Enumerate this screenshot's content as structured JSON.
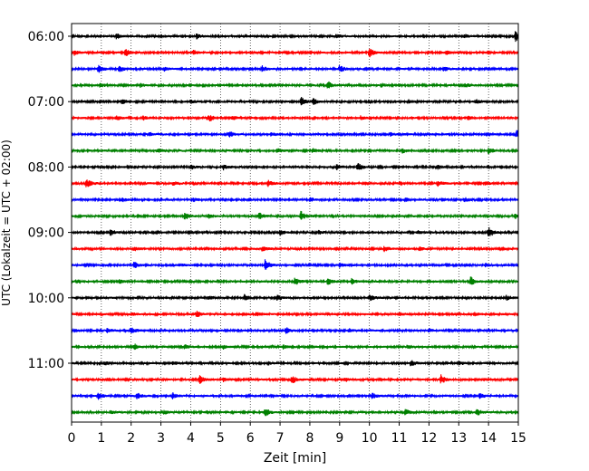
{
  "chart_data": {
    "type": "line",
    "title": "",
    "xlabel": "Zeit  [min]",
    "ylabel": "UTC (Lokalzeit = UTC + 02:00)",
    "xlim": [
      0,
      15
    ],
    "x_ticks": [
      0,
      1,
      2,
      3,
      4,
      5,
      6,
      7,
      8,
      9,
      10,
      11,
      12,
      13,
      14,
      15
    ],
    "x_tick_labels": [
      "0",
      "1",
      "2",
      "3",
      "4",
      "5",
      "6",
      "7",
      "8",
      "9",
      "10",
      "11",
      "12",
      "13",
      "14",
      "15"
    ],
    "y_tick_labels": [
      "06:00",
      "07:00",
      "08:00",
      "09:00",
      "10:00",
      "11:00"
    ],
    "grid": "vertical-dotted",
    "trace_colors": [
      "#000000",
      "#ff0000",
      "#0000ff",
      "#008000"
    ],
    "series": [
      {
        "start": "06:00",
        "events": [
          [
            1.5,
            0.45
          ],
          [
            4.2,
            0.4
          ],
          [
            8.9,
            0.35
          ],
          [
            13.2,
            0.3
          ],
          [
            14.9,
            1.0
          ]
        ]
      },
      {
        "start": "06:15",
        "events": [
          [
            0.1,
            0.5
          ],
          [
            1.8,
            0.6
          ],
          [
            4.1,
            0.35
          ],
          [
            10.0,
            0.75
          ],
          [
            12.6,
            0.3
          ]
        ]
      },
      {
        "start": "06:30",
        "events": [
          [
            0.9,
            0.6
          ],
          [
            1.6,
            0.5
          ],
          [
            3.1,
            0.35
          ],
          [
            6.4,
            0.5
          ],
          [
            9.0,
            0.6
          ],
          [
            12.5,
            0.4
          ]
        ]
      },
      {
        "start": "06:45",
        "events": [
          [
            0.95,
            0.3
          ],
          [
            2.3,
            0.3
          ],
          [
            8.6,
            0.7
          ],
          [
            10.4,
            0.3
          ],
          [
            13.2,
            0.3
          ]
        ]
      },
      {
        "start": "07:00",
        "events": [
          [
            1.7,
            0.4
          ],
          [
            4.0,
            0.3
          ],
          [
            7.7,
            0.8
          ],
          [
            8.1,
            0.55
          ],
          [
            11.3,
            0.3
          ],
          [
            13.6,
            0.3
          ]
        ]
      },
      {
        "start": "07:15",
        "events": [
          [
            1.5,
            0.45
          ],
          [
            2.4,
            0.35
          ],
          [
            4.6,
            0.65
          ],
          [
            5.4,
            0.35
          ],
          [
            9.7,
            0.3
          ],
          [
            13.3,
            0.3
          ]
        ]
      },
      {
        "start": "07:30",
        "events": [
          [
            2.6,
            0.3
          ],
          [
            5.3,
            0.6
          ],
          [
            6.7,
            0.3
          ],
          [
            10.7,
            0.3
          ],
          [
            14.95,
            0.7
          ]
        ]
      },
      {
        "start": "07:45",
        "events": [
          [
            2.9,
            0.3
          ],
          [
            6.9,
            0.3
          ],
          [
            8.1,
            0.3
          ],
          [
            11.1,
            0.35
          ],
          [
            14.0,
            0.55
          ]
        ]
      },
      {
        "start": "08:00",
        "events": [
          [
            4.0,
            0.4
          ],
          [
            5.1,
            0.45
          ],
          [
            8.9,
            0.4
          ],
          [
            9.6,
            0.75
          ],
          [
            12.3,
            0.3
          ]
        ]
      },
      {
        "start": "08:15",
        "events": [
          [
            0.5,
            0.75
          ],
          [
            3.4,
            0.3
          ],
          [
            6.6,
            0.45
          ],
          [
            12.3,
            0.45
          ],
          [
            13.9,
            0.3
          ]
        ]
      },
      {
        "start": "08:30",
        "events": [
          [
            1.7,
            0.3
          ],
          [
            4.1,
            0.3
          ],
          [
            8.0,
            0.3
          ],
          [
            11.2,
            0.3
          ],
          [
            13.2,
            0.4
          ]
        ]
      },
      {
        "start": "08:45",
        "events": [
          [
            3.8,
            0.6
          ],
          [
            4.6,
            0.4
          ],
          [
            6.3,
            0.55
          ],
          [
            7.7,
            0.8
          ],
          [
            14.9,
            0.4
          ]
        ]
      },
      {
        "start": "09:00",
        "events": [
          [
            1.3,
            0.5
          ],
          [
            7.0,
            0.45
          ],
          [
            8.3,
            0.3
          ],
          [
            11.6,
            0.3
          ],
          [
            14.0,
            1.0
          ]
        ]
      },
      {
        "start": "09:15",
        "events": [
          [
            2.1,
            0.3
          ],
          [
            6.4,
            0.45
          ],
          [
            10.5,
            0.4
          ],
          [
            11.7,
            0.3
          ]
        ]
      },
      {
        "start": "09:30",
        "events": [
          [
            2.1,
            0.5
          ],
          [
            3.6,
            0.3
          ],
          [
            6.5,
            1.0
          ],
          [
            9.0,
            0.3
          ],
          [
            13.9,
            0.3
          ]
        ]
      },
      {
        "start": "09:45",
        "events": [
          [
            1.6,
            0.3
          ],
          [
            7.5,
            0.7
          ],
          [
            8.6,
            0.5
          ],
          [
            9.4,
            0.6
          ],
          [
            13.4,
            0.75
          ]
        ]
      },
      {
        "start": "10:00",
        "events": [
          [
            4.6,
            0.3
          ],
          [
            5.8,
            0.5
          ],
          [
            6.9,
            0.5
          ],
          [
            10.0,
            0.5
          ],
          [
            14.6,
            0.4
          ]
        ]
      },
      {
        "start": "10:15",
        "events": [
          [
            2.0,
            0.3
          ],
          [
            4.2,
            0.5
          ],
          [
            6.2,
            0.3
          ],
          [
            11.0,
            0.3
          ],
          [
            13.5,
            0.3
          ]
        ]
      },
      {
        "start": "10:30",
        "events": [
          [
            1.2,
            0.35
          ],
          [
            2.0,
            0.55
          ],
          [
            7.2,
            0.7
          ],
          [
            9.3,
            0.3
          ],
          [
            12.0,
            0.3
          ]
        ]
      },
      {
        "start": "10:45",
        "events": [
          [
            2.1,
            0.5
          ],
          [
            3.8,
            0.3
          ],
          [
            5.1,
            0.3
          ],
          [
            7.1,
            0.3
          ],
          [
            11.3,
            0.3
          ]
        ]
      },
      {
        "start": "11:00",
        "events": [
          [
            1.1,
            0.3
          ],
          [
            3.4,
            0.3
          ],
          [
            6.6,
            0.3
          ],
          [
            11.4,
            0.55
          ],
          [
            13.0,
            0.3
          ]
        ]
      },
      {
        "start": "11:15",
        "events": [
          [
            4.3,
            0.8
          ],
          [
            5.1,
            0.3
          ],
          [
            7.4,
            0.65
          ],
          [
            9.2,
            0.3
          ],
          [
            12.4,
            0.8
          ]
        ]
      },
      {
        "start": "11:30",
        "events": [
          [
            0.9,
            0.5
          ],
          [
            2.2,
            0.45
          ],
          [
            3.4,
            0.45
          ],
          [
            10.1,
            0.5
          ],
          [
            13.7,
            0.45
          ]
        ]
      },
      {
        "start": "11:45",
        "events": [
          [
            1.3,
            0.3
          ],
          [
            3.1,
            0.3
          ],
          [
            6.5,
            0.65
          ],
          [
            11.2,
            0.6
          ],
          [
            13.6,
            0.55
          ]
        ]
      }
    ]
  }
}
